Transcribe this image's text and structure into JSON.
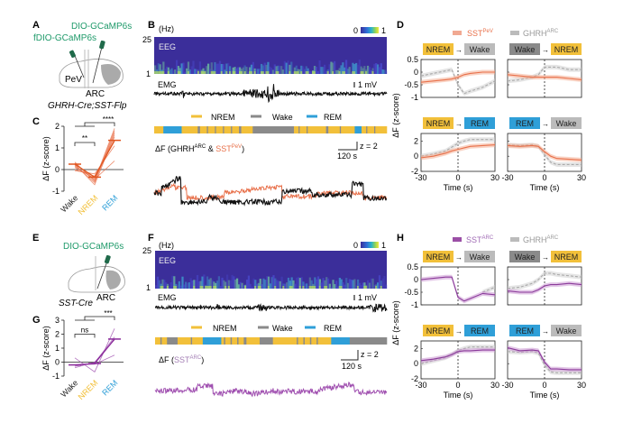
{
  "panels": {
    "A": {
      "letter": "A",
      "virus1": "DIO-GCaMP6s",
      "virus2": "fDIO-GCaMP6s",
      "region1": "PeV",
      "region2": "ARC",
      "genotype": "GHRH-Cre;SST-Flp"
    },
    "E": {
      "letter": "E",
      "virus1": "DIO-GCaMP6s",
      "region1": "ARC",
      "genotype": "SST-Cre"
    },
    "B": {
      "letter": "B",
      "hz_label": "(Hz)",
      "hz_top": "25",
      "hz_bottom": "1",
      "eeg_label": "EEG",
      "emg_label": "EMG",
      "emg_scale": "1 mV",
      "colorbar_min": "0",
      "colorbar_max": "1",
      "legend": [
        "NREM",
        "Wake",
        "REM"
      ],
      "trace_title_prefix": "ΔF (GHRH",
      "trace_title_sup1": "ARC",
      "trace_title_mid": " & ",
      "trace_title_sst": "SST",
      "trace_title_sup2": "PeV",
      "trace_title_suffix": ")",
      "scale_z": "z = 2",
      "scale_t": "120 s"
    },
    "F": {
      "letter": "F",
      "hz_label": "(Hz)",
      "hz_top": "25",
      "hz_bottom": "1",
      "eeg_label": "EEG",
      "emg_label": "EMG",
      "emg_scale": "1 mV",
      "colorbar_min": "0",
      "colorbar_max": "1",
      "legend": [
        "NREM",
        "Wake",
        "REM"
      ],
      "trace_title_prefix": "ΔF (",
      "trace_title_sst": "SST",
      "trace_title_sup": "ARC",
      "trace_title_suffix": ")",
      "scale_z": "z = 2",
      "scale_t": "120 s"
    },
    "D": {
      "letter": "D",
      "legend": [
        {
          "name": "SST",
          "sup": "PeV"
        },
        {
          "name": "GHRH",
          "sup": "ARC"
        }
      ]
    },
    "H": {
      "letter": "H",
      "legend": [
        {
          "name": "SST",
          "sup": "ARC"
        },
        {
          "name": "GHRH",
          "sup": "ARC"
        }
      ]
    },
    "C": {
      "letter": "C"
    },
    "G": {
      "letter": "G"
    }
  },
  "colors": {
    "nrem": "#f2c03a",
    "wake": "#8a8a8a",
    "rem": "#2f9fd8",
    "sst_pev": "#e8704a",
    "ghrh": "#aaaaaa",
    "sst_arc": "#9b4fa6",
    "green": "#1f9a6a",
    "eeg_bg": "#3b2e9a"
  },
  "chart_data": [
    {
      "panel": "C",
      "type": "line",
      "title": "",
      "ylabel": "ΔF (z-score)",
      "categories": [
        "Wake",
        "NREM",
        "REM"
      ],
      "ylim": [
        -1,
        2
      ],
      "yticks": [
        -1,
        0,
        1,
        2
      ],
      "mean": [
        0.25,
        -0.35,
        1.35
      ],
      "individuals": [
        [
          0.3,
          -0.5,
          1.9
        ],
        [
          0.2,
          -0.6,
          1.7
        ],
        [
          0.1,
          -0.4,
          1.5
        ],
        [
          0.0,
          -0.3,
          1.3
        ],
        [
          0.25,
          -0.7,
          1.6
        ],
        [
          -0.05,
          -0.2,
          1.1
        ],
        [
          0.15,
          -0.45,
          0.4
        ],
        [
          0.35,
          -0.55,
          1.8
        ]
      ],
      "significance": [
        {
          "pair": [
            "Wake",
            "NREM"
          ],
          "label": "**"
        },
        {
          "pair": [
            "Wake/NREM",
            "REM"
          ],
          "label": "****"
        }
      ]
    },
    {
      "panel": "G",
      "type": "line",
      "title": "",
      "ylabel": "ΔF (z-score)",
      "categories": [
        "Wake",
        "NREM",
        "REM"
      ],
      "ylim": [
        -1,
        3
      ],
      "yticks": [
        -1,
        0,
        1,
        2,
        3
      ],
      "mean": [
        -0.2,
        -0.1,
        1.65
      ],
      "individuals": [
        [
          0.3,
          -0.7,
          2.4
        ],
        [
          -0.3,
          -0.05,
          1.8
        ],
        [
          -0.4,
          0.0,
          1.6
        ],
        [
          -0.2,
          -0.15,
          0.5
        ]
      ],
      "significance": [
        {
          "pair": [
            "Wake",
            "NREM"
          ],
          "label": "ns"
        },
        {
          "pair": [
            "Wake/NREM",
            "REM"
          ],
          "label": "***"
        }
      ]
    },
    {
      "panel": "D",
      "type": "line",
      "xlabel": "Time (s)",
      "ylabel": "ΔF (z-score)",
      "xlim": [
        -30,
        30
      ],
      "xticks": [
        -30,
        0,
        30
      ],
      "subplots": [
        {
          "from": "NREM",
          "to": "Wake",
          "ylim": [
            -1,
            0.5
          ],
          "yticks": [
            -1,
            -0.5,
            0,
            0.5
          ],
          "x": [
            -30,
            -20,
            -10,
            -5,
            0,
            5,
            10,
            20,
            30
          ],
          "series": [
            {
              "name": "SST PeV",
              "values": [
                -0.4,
                -0.35,
                -0.3,
                -0.27,
                -0.2,
                -0.1,
                -0.05,
                0.0,
                0.0
              ]
            },
            {
              "name": "GHRH ARC",
              "values": [
                -0.15,
                -0.05,
                0.05,
                0.1,
                -0.5,
                -0.85,
                -0.75,
                -0.6,
                -0.35
              ]
            }
          ]
        },
        {
          "from": "Wake",
          "to": "NREM",
          "ylim": [
            -1,
            0.5
          ],
          "yticks": [
            -1,
            -0.5,
            0,
            0.5
          ],
          "x": [
            -30,
            -20,
            -10,
            -5,
            0,
            5,
            10,
            20,
            30
          ],
          "series": [
            {
              "name": "SST PeV",
              "values": [
                -0.1,
                -0.15,
                -0.2,
                -0.2,
                -0.2,
                -0.2,
                -0.2,
                -0.25,
                -0.3
              ]
            },
            {
              "name": "GHRH ARC",
              "values": [
                -0.35,
                -0.3,
                -0.2,
                -0.1,
                0.2,
                0.2,
                0.2,
                0.1,
                0.1
              ]
            }
          ]
        },
        {
          "from": "NREM",
          "to": "REM",
          "ylim": [
            -2,
            3
          ],
          "yticks": [
            -2,
            0,
            2
          ],
          "x": [
            -30,
            -20,
            -10,
            -5,
            0,
            5,
            10,
            20,
            30
          ],
          "series": [
            {
              "name": "SST PeV",
              "values": [
                -0.2,
                0.0,
                0.4,
                0.7,
                0.9,
                1.1,
                1.3,
                1.4,
                1.5
              ]
            },
            {
              "name": "GHRH ARC",
              "values": [
                0.0,
                0.3,
                0.7,
                1.2,
                1.7,
                2.0,
                2.2,
                2.2,
                2.2
              ]
            }
          ]
        },
        {
          "from": "REM",
          "to": "Wake",
          "ylim": [
            -2,
            3
          ],
          "yticks": [
            -2,
            0,
            2
          ],
          "x": [
            -30,
            -20,
            -10,
            -5,
            0,
            5,
            10,
            20,
            30
          ],
          "series": [
            {
              "name": "SST PeV",
              "values": [
                1.4,
                1.3,
                1.4,
                1.3,
                0.6,
                0.0,
                -0.3,
                -0.4,
                -0.5
              ]
            },
            {
              "name": "GHRH ARC",
              "values": [
                1.5,
                1.4,
                1.5,
                1.3,
                0.2,
                -0.8,
                -1.1,
                -1.1,
                -1.1
              ]
            }
          ]
        }
      ]
    },
    {
      "panel": "H",
      "type": "line",
      "xlabel": "Time (s)",
      "ylabel": "ΔF (z-score)",
      "xlim": [
        -30,
        30
      ],
      "xticks": [
        -30,
        0,
        30
      ],
      "subplots": [
        {
          "from": "NREM",
          "to": "Wake",
          "ylim": [
            -1,
            0.5
          ],
          "yticks": [
            -1,
            -0.5,
            0,
            0.5
          ],
          "x": [
            -30,
            -20,
            -10,
            -5,
            0,
            5,
            10,
            20,
            30
          ],
          "series": [
            {
              "name": "SST ARC",
              "values": [
                0.0,
                0.05,
                0.1,
                0.1,
                -0.7,
                -0.85,
                -0.75,
                -0.55,
                -0.6
              ]
            },
            {
              "name": "GHRH ARC",
              "values": [
                null,
                null,
                null,
                null,
                null,
                null,
                null,
                -0.5,
                -0.3
              ]
            }
          ]
        },
        {
          "from": "Wake",
          "to": "NREM",
          "ylim": [
            -1,
            0.5
          ],
          "yticks": [
            -1,
            -0.5,
            0,
            0.5
          ],
          "x": [
            -30,
            -20,
            -10,
            -5,
            0,
            5,
            10,
            20,
            30
          ],
          "series": [
            {
              "name": "SST ARC",
              "values": [
                -0.45,
                -0.5,
                -0.5,
                -0.4,
                -0.25,
                -0.2,
                -0.2,
                -0.15,
                -0.2
              ]
            },
            {
              "name": "GHRH ARC",
              "values": [
                -0.35,
                -0.3,
                -0.15,
                0.0,
                0.25,
                0.25,
                0.2,
                0.15,
                0.1
              ]
            }
          ]
        },
        {
          "from": "NREM",
          "to": "REM",
          "ylim": [
            -2,
            3
          ],
          "yticks": [
            -2,
            0,
            2
          ],
          "x": [
            -30,
            -20,
            -10,
            -5,
            0,
            5,
            10,
            20,
            30
          ],
          "series": [
            {
              "name": "SST ARC",
              "values": [
                0.4,
                0.6,
                0.9,
                1.2,
                1.6,
                1.7,
                1.7,
                1.8,
                1.8
              ]
            },
            {
              "name": "GHRH ARC",
              "values": [
                0.0,
                0.4,
                0.8,
                1.2,
                1.7,
                2.0,
                2.2,
                2.2,
                2.2
              ]
            }
          ]
        },
        {
          "from": "REM",
          "to": "Wake",
          "ylim": [
            -2,
            3
          ],
          "yticks": [
            -2,
            0,
            2
          ],
          "x": [
            -30,
            -20,
            -10,
            -5,
            0,
            5,
            10,
            20,
            30
          ],
          "series": [
            {
              "name": "SST ARC",
              "values": [
                2.1,
                1.7,
                1.8,
                1.7,
                0.2,
                -0.7,
                -0.7,
                -0.8,
                -0.8
              ]
            },
            {
              "name": "GHRH ARC",
              "values": [
                1.6,
                1.5,
                1.6,
                1.4,
                -0.2,
                -1.1,
                -1.2,
                -1.2,
                -1.2
              ]
            }
          ]
        }
      ]
    },
    {
      "panel": "B-hypnogram",
      "type": "table",
      "states": [
        [
          "NREM",
          0.04
        ],
        [
          "REM",
          0.08
        ],
        [
          "NREM",
          0.07
        ],
        [
          "Wake",
          0.01
        ],
        [
          "NREM",
          0.03
        ],
        [
          "Wake",
          0.005
        ],
        [
          "NREM",
          0.03
        ],
        [
          "Wake",
          0.005
        ],
        [
          "NREM",
          0.03
        ],
        [
          "Wake",
          0.005
        ],
        [
          "NREM",
          0.03
        ],
        [
          "Wake",
          0.005
        ],
        [
          "NREM",
          0.03
        ],
        [
          "Wake",
          0.01
        ],
        [
          "NREM",
          0.05
        ],
        [
          "Wake",
          0.18
        ],
        [
          "NREM",
          0.02
        ],
        [
          "Wake",
          0.005
        ],
        [
          "NREM",
          0.03
        ],
        [
          "Wake",
          0.005
        ],
        [
          "NREM",
          0.08
        ],
        [
          "Wake",
          0.01
        ],
        [
          "NREM",
          0.05
        ],
        [
          "Wake",
          0.005
        ],
        [
          "NREM",
          0.06
        ],
        [
          "REM",
          0.03
        ],
        [
          "NREM",
          0.02
        ],
        [
          "Wake",
          0.005
        ],
        [
          "NREM",
          0.03
        ],
        [
          "Wake",
          0.005
        ],
        [
          "NREM",
          0.05
        ]
      ]
    },
    {
      "panel": "F-hypnogram",
      "type": "table",
      "states": [
        [
          "NREM",
          0.02
        ],
        [
          "Wake",
          0.005
        ],
        [
          "NREM",
          0.02
        ],
        [
          "Wake",
          0.04
        ],
        [
          "NREM",
          0.05
        ],
        [
          "Wake",
          0.005
        ],
        [
          "NREM",
          0.04
        ],
        [
          "REM",
          0.07
        ],
        [
          "NREM",
          0.01
        ],
        [
          "Wake",
          0.005
        ],
        [
          "NREM",
          0.02
        ],
        [
          "Wake",
          0.005
        ],
        [
          "NREM",
          0.02
        ],
        [
          "Wake",
          0.005
        ],
        [
          "NREM",
          0.02
        ],
        [
          "Wake",
          0.01
        ],
        [
          "NREM",
          0.05
        ],
        [
          "Wake",
          0.05
        ],
        [
          "NREM",
          0.09
        ],
        [
          "Wake",
          0.005
        ],
        [
          "NREM",
          0.02
        ],
        [
          "Wake",
          0.005
        ],
        [
          "NREM",
          0.02
        ],
        [
          "Wake",
          0.005
        ],
        [
          "NREM",
          0.02
        ],
        [
          "Wake",
          0.005
        ],
        [
          "NREM",
          0.05
        ],
        [
          "REM",
          0.07
        ],
        [
          "Wake",
          0.14
        ]
      ]
    }
  ]
}
